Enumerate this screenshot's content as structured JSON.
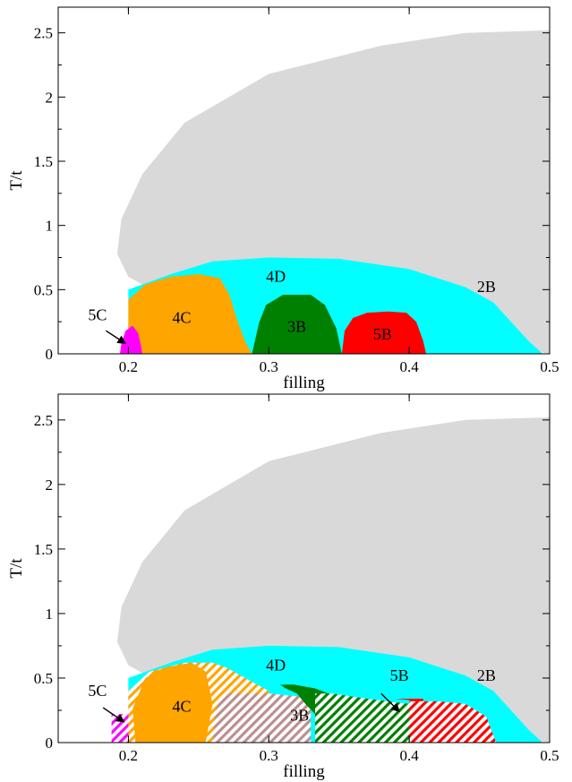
{
  "chart_data": [
    {
      "type": "area",
      "panel": "top",
      "xlabel": "filling",
      "ylabel": "T/t",
      "xlim": [
        0.15,
        0.5
      ],
      "ylim": [
        0,
        2.7
      ],
      "x_ticks": [
        0.2,
        0.3,
        0.4,
        0.5
      ],
      "x_tick_labels": [
        "0.2",
        "0.3",
        "0.4",
        "0.5"
      ],
      "y_ticks": [
        0,
        0.5,
        1,
        1.5,
        2,
        2.5
      ],
      "y_tick_labels": [
        "0",
        "0.5",
        "1",
        "1.5",
        "2",
        "2.5"
      ],
      "grid": false,
      "regions": [
        {
          "name": "2B",
          "color": "#d9d9d9",
          "hatched": false,
          "points": [
            [
              0.5,
              0
            ],
            [
              0.5,
              2.52
            ],
            [
              0.44,
              2.5
            ],
            [
              0.38,
              2.4
            ],
            [
              0.3,
              2.18
            ],
            [
              0.24,
              1.8
            ],
            [
              0.21,
              1.4
            ],
            [
              0.195,
              1.05
            ],
            [
              0.192,
              0.78
            ],
            [
              0.2,
              0.6
            ],
            [
              0.22,
              0.48
            ],
            [
              0.3,
              0.3
            ],
            [
              0.45,
              0.1
            ],
            [
              0.5,
              0
            ]
          ]
        },
        {
          "name": "4D",
          "color": "#00ffff",
          "hatched": false,
          "points": [
            [
              0.2,
              0
            ],
            [
              0.2,
              0.5
            ],
            [
              0.23,
              0.62
            ],
            [
              0.26,
              0.72
            ],
            [
              0.3,
              0.75
            ],
            [
              0.35,
              0.74
            ],
            [
              0.4,
              0.66
            ],
            [
              0.44,
              0.52
            ],
            [
              0.46,
              0.4
            ],
            [
              0.475,
              0.22
            ],
            [
              0.485,
              0.1
            ],
            [
              0.49,
              0.05
            ],
            [
              0.495,
              0
            ]
          ]
        },
        {
          "name": "4C",
          "color": "#ffa500",
          "hatched": false,
          "points": [
            [
              0.2,
              0
            ],
            [
              0.2,
              0.42
            ],
            [
              0.212,
              0.54
            ],
            [
              0.23,
              0.6
            ],
            [
              0.25,
              0.62
            ],
            [
              0.265,
              0.59
            ],
            [
              0.272,
              0.46
            ],
            [
              0.277,
              0.28
            ],
            [
              0.283,
              0.1
            ],
            [
              0.288,
              0
            ]
          ]
        },
        {
          "name": "5C",
          "color": "#ff00ff",
          "hatched": false,
          "points": [
            [
              0.194,
              0
            ],
            [
              0.195,
              0.08
            ],
            [
              0.198,
              0.18
            ],
            [
              0.203,
              0.22
            ],
            [
              0.207,
              0.16
            ],
            [
              0.209,
              0.06
            ],
            [
              0.21,
              0
            ]
          ]
        },
        {
          "name": "3B",
          "color": "#008000",
          "hatched": false,
          "points": [
            [
              0.288,
              0
            ],
            [
              0.293,
              0.24
            ],
            [
              0.298,
              0.38
            ],
            [
              0.31,
              0.46
            ],
            [
              0.33,
              0.46
            ],
            [
              0.34,
              0.38
            ],
            [
              0.348,
              0.2
            ],
            [
              0.352,
              0
            ]
          ]
        },
        {
          "name": "5B",
          "color": "#ff0000",
          "hatched": false,
          "points": [
            [
              0.352,
              0
            ],
            [
              0.354,
              0.18
            ],
            [
              0.36,
              0.28
            ],
            [
              0.37,
              0.32
            ],
            [
              0.385,
              0.33
            ],
            [
              0.398,
              0.32
            ],
            [
              0.405,
              0.25
            ],
            [
              0.41,
              0.1
            ],
            [
              0.412,
              0
            ]
          ]
        }
      ],
      "labels": [
        {
          "text": "2B",
          "x": 0.455,
          "y": 0.48
        },
        {
          "text": "4D",
          "x": 0.305,
          "y": 0.56
        },
        {
          "text": "4C",
          "x": 0.238,
          "y": 0.24
        },
        {
          "text": "3B",
          "x": 0.32,
          "y": 0.17
        },
        {
          "text": "5B",
          "x": 0.381,
          "y": 0.11
        },
        {
          "text": "5C",
          "x": 0.178,
          "y": 0.26
        }
      ],
      "arrows": [
        {
          "target": "5C",
          "from": [
            0.184,
            0.18
          ],
          "to": [
            0.198,
            0.08
          ]
        }
      ]
    },
    {
      "type": "area",
      "panel": "bottom",
      "xlabel": "filling",
      "ylabel": "T/t",
      "xlim": [
        0.15,
        0.5
      ],
      "ylim": [
        0,
        2.7
      ],
      "x_ticks": [
        0.2,
        0.3,
        0.4,
        0.5
      ],
      "x_tick_labels": [
        "0.2",
        "0.3",
        "0.4",
        "0.5"
      ],
      "y_ticks": [
        0,
        0.5,
        1,
        1.5,
        2,
        2.5
      ],
      "y_tick_labels": [
        "0",
        "0.5",
        "1",
        "1.5",
        "2",
        "2.5"
      ],
      "grid": false,
      "regions": [
        {
          "name": "2B",
          "color": "#d9d9d9",
          "hatched": false,
          "points": [
            [
              0.5,
              0
            ],
            [
              0.5,
              2.52
            ],
            [
              0.44,
              2.5
            ],
            [
              0.38,
              2.4
            ],
            [
              0.3,
              2.18
            ],
            [
              0.24,
              1.8
            ],
            [
              0.21,
              1.4
            ],
            [
              0.195,
              1.05
            ],
            [
              0.192,
              0.78
            ],
            [
              0.2,
              0.6
            ],
            [
              0.22,
              0.48
            ],
            [
              0.3,
              0.3
            ],
            [
              0.45,
              0.1
            ],
            [
              0.5,
              0
            ]
          ]
        },
        {
          "name": "4D",
          "color": "#00ffff",
          "hatched": false,
          "points": [
            [
              0.2,
              0
            ],
            [
              0.2,
              0.5
            ],
            [
              0.23,
              0.62
            ],
            [
              0.26,
              0.72
            ],
            [
              0.3,
              0.75
            ],
            [
              0.35,
              0.74
            ],
            [
              0.4,
              0.66
            ],
            [
              0.44,
              0.52
            ],
            [
              0.46,
              0.4
            ],
            [
              0.475,
              0.22
            ],
            [
              0.485,
              0.1
            ],
            [
              0.49,
              0.05
            ],
            [
              0.495,
              0
            ]
          ]
        },
        {
          "name": "4C hatched",
          "color": "#ffa500",
          "hatched": true,
          "points": [
            [
              0.2,
              0
            ],
            [
              0.2,
              0.4
            ],
            [
              0.215,
              0.55
            ],
            [
              0.24,
              0.62
            ],
            [
              0.26,
              0.62
            ],
            [
              0.27,
              0.58
            ],
            [
              0.28,
              0.52
            ],
            [
              0.29,
              0.46
            ],
            [
              0.3,
              0.4
            ],
            [
              0.3,
              0
            ]
          ]
        },
        {
          "name": "4C",
          "color": "#ffa500",
          "hatched": false,
          "points": [
            [
              0.205,
              0
            ],
            [
              0.203,
              0.26
            ],
            [
              0.212,
              0.5
            ],
            [
              0.225,
              0.58
            ],
            [
              0.245,
              0.62
            ],
            [
              0.255,
              0.55
            ],
            [
              0.26,
              0.3
            ],
            [
              0.255,
              0
            ]
          ]
        },
        {
          "name": "5C hatched",
          "color": "#ff00ff",
          "hatched": true,
          "points": [
            [
              0.188,
              0
            ],
            [
              0.188,
              0.22
            ],
            [
              0.2,
              0.22
            ],
            [
              0.2,
              0
            ]
          ]
        },
        {
          "name": "4C/3B hatched",
          "color": "#bc8f8f",
          "hatched": true,
          "points": [
            [
              0.26,
              0
            ],
            [
              0.262,
              0.25
            ],
            [
              0.268,
              0.38
            ],
            [
              0.3,
              0.38
            ],
            [
              0.33,
              0.35
            ],
            [
              0.33,
              0
            ]
          ]
        },
        {
          "name": "3B",
          "color": "#008000",
          "hatched": false,
          "points": [
            [
              0.333,
              0
            ],
            [
              0.333,
              0.22
            ],
            [
              0.326,
              0.3
            ],
            [
              0.32,
              0.38
            ],
            [
              0.312,
              0.42
            ],
            [
              0.308,
              0.45
            ],
            [
              0.318,
              0.45
            ],
            [
              0.333,
              0.42
            ],
            [
              0.345,
              0.37
            ],
            [
              0.35,
              0.3
            ],
            [
              0.335,
              0.22
            ],
            [
              0.333,
              0
            ]
          ]
        },
        {
          "name": "3B hatched",
          "color": "#008000",
          "hatched": true,
          "points": [
            [
              0.333,
              0
            ],
            [
              0.333,
              0.38
            ],
            [
              0.345,
              0.38
            ],
            [
              0.37,
              0.34
            ],
            [
              0.4,
              0.3
            ],
            [
              0.4,
              0
            ]
          ]
        },
        {
          "name": "5B",
          "color": "#ff0000",
          "hatched": false,
          "points": [
            [
              0.39,
              0.34
            ],
            [
              0.4,
              0.33
            ],
            [
              0.405,
              0.28
            ],
            [
              0.41,
              0.2
            ],
            [
              0.41,
              0.34
            ]
          ]
        },
        {
          "name": "5B hatched",
          "color": "#ff0000",
          "hatched": true,
          "points": [
            [
              0.4,
              0
            ],
            [
              0.4,
              0.32
            ],
            [
              0.42,
              0.32
            ],
            [
              0.44,
              0.3
            ],
            [
              0.455,
              0.2
            ],
            [
              0.46,
              0.05
            ],
            [
              0.462,
              0
            ]
          ]
        }
      ],
      "labels": [
        {
          "text": "2B",
          "x": 0.455,
          "y": 0.48
        },
        {
          "text": "4D",
          "x": 0.305,
          "y": 0.56
        },
        {
          "text": "4C",
          "x": 0.238,
          "y": 0.24
        },
        {
          "text": "3B",
          "x": 0.322,
          "y": 0.17
        },
        {
          "text": "5B",
          "x": 0.393,
          "y": 0.48
        },
        {
          "text": "5C",
          "x": 0.178,
          "y": 0.36
        }
      ],
      "arrows": [
        {
          "target": "5C",
          "from": [
            0.182,
            0.27
          ],
          "to": [
            0.197,
            0.16
          ]
        },
        {
          "target": "5B",
          "from": [
            0.38,
            0.38
          ],
          "to": [
            0.393,
            0.24
          ]
        }
      ]
    }
  ]
}
